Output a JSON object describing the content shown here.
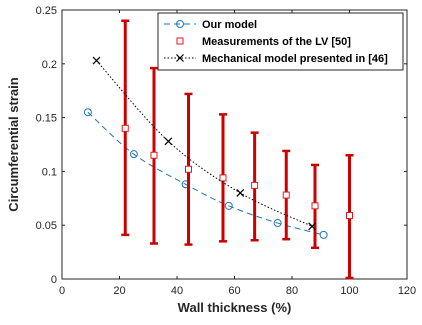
{
  "chart_data": {
    "type": "line",
    "xlabel": "Wall thickness (%)",
    "ylabel": "Circumferential strain",
    "xlim": [
      0,
      120
    ],
    "ylim": [
      0,
      0.25
    ],
    "xticks": [
      "0",
      "20",
      "40",
      "60",
      "80",
      "100",
      "120"
    ],
    "yticks": [
      "0",
      "0.05",
      "0.1",
      "0.15",
      "0.2",
      "0.25"
    ],
    "grid": false,
    "legend_position": "top-right",
    "series": [
      {
        "name": "Our model",
        "style": "dashed-circle",
        "color": "#1f77b4",
        "x": [
          9,
          25,
          43,
          58,
          75,
          91
        ],
        "y": [
          0.155,
          0.116,
          0.088,
          0.068,
          0.052,
          0.041
        ]
      },
      {
        "name": "Measurements of the LV [50]",
        "style": "square-errorbar",
        "color": "#e8191e",
        "errorbar_color": "#cc0000",
        "x": [
          22,
          32,
          44,
          56,
          67,
          78,
          88,
          100
        ],
        "y": [
          0.14,
          0.115,
          0.102,
          0.094,
          0.087,
          0.078,
          0.068,
          0.059
        ],
        "y_low": [
          0.041,
          0.033,
          0.032,
          0.035,
          0.036,
          0.037,
          0.029,
          0.001
        ],
        "y_high": [
          0.24,
          0.196,
          0.172,
          0.153,
          0.136,
          0.119,
          0.106,
          0.115
        ]
      },
      {
        "name": "Mechanical model presented in [46]",
        "style": "dotted-x",
        "color": "#000000",
        "x": [
          12,
          37,
          62,
          87
        ],
        "y": [
          0.203,
          0.128,
          0.08,
          0.049
        ]
      }
    ]
  }
}
